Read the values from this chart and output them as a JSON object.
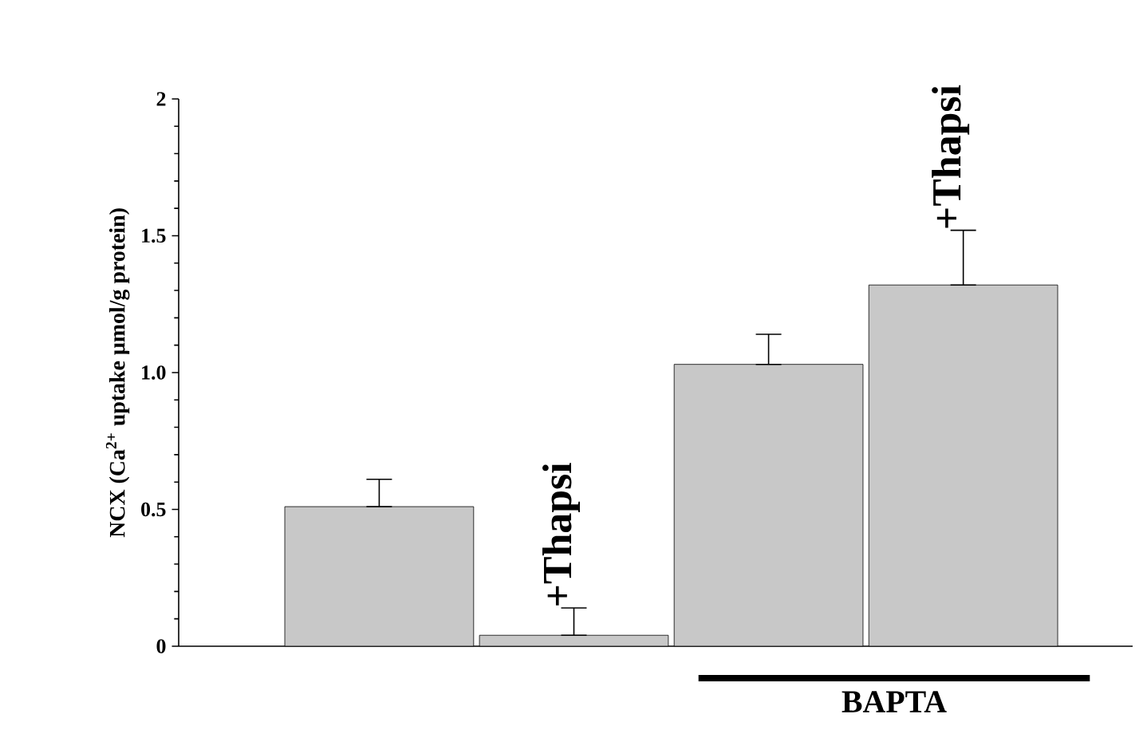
{
  "chart_data": {
    "type": "bar",
    "ylabel": "NCX (Ca$^{2+}$ uptake μmol/g protein)",
    "categories": [
      null,
      null,
      null,
      null
    ],
    "values": [
      0.51,
      0.04,
      1.03,
      1.32
    ],
    "errors": [
      [
        0.51,
        0.61
      ],
      [
        0.04,
        0.14
      ],
      [
        1.03,
        1.14
      ],
      [
        1.32,
        1.52
      ]
    ],
    "color": "#c8c8c8",
    "ylim": [
      0,
      2
    ],
    "yticks": [
      0,
      0.5,
      {
        "value": 1,
        "label": "1.0"
      },
      1.5,
      2
    ],
    "annotations": [
      "+Thapsi",
      "+Thapsi",
      "BAPTA"
    ],
    "tick_labels": "y"
  }
}
